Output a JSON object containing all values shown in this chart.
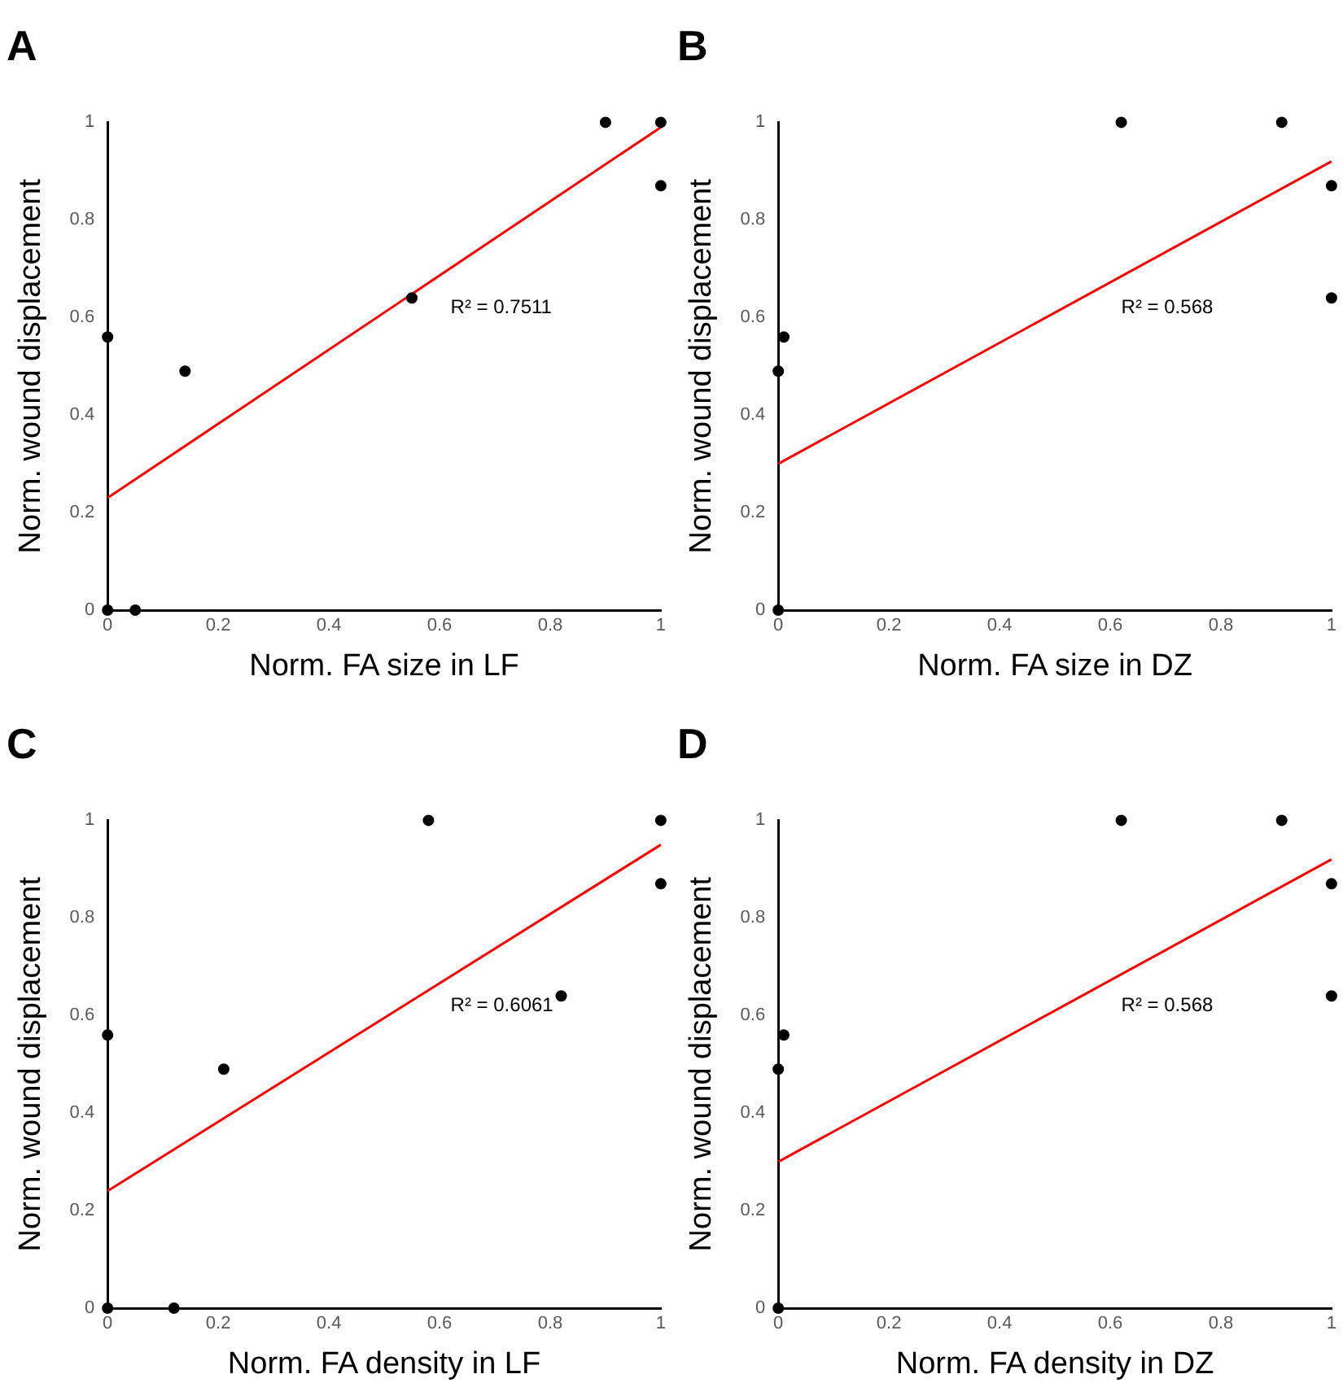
{
  "chart_data": [
    {
      "type": "scatter",
      "title": "A",
      "xlabel": "Norm. FA size in LF",
      "ylabel": "Norm. wound displacement",
      "xlim": [
        0,
        1
      ],
      "xticks": [
        0,
        0.2,
        0.4,
        0.6,
        0.8,
        1
      ],
      "ylim": [
        0,
        1
      ],
      "yticks": [
        0,
        0.2,
        0.4,
        0.6,
        0.8,
        1
      ],
      "grid": false,
      "legend": false,
      "annotations": [
        "R² = 0.7511"
      ],
      "series": [
        {
          "type": "scatter",
          "color": "#000000",
          "marker": "circle",
          "x": [
            0,
            0.05,
            0,
            0.14,
            0.55,
            0.9,
            1,
            1
          ],
          "values": [
            0,
            0,
            0.56,
            0.49,
            0.64,
            1,
            1,
            0.87
          ]
        },
        {
          "type": "line",
          "color": "#ff0000",
          "marker": "none",
          "line_style": "solid",
          "x": [
            0,
            1
          ],
          "values": [
            0.23,
            0.99
          ]
        }
      ]
    },
    {
      "type": "scatter",
      "title": "B",
      "xlabel": "Norm. FA size in DZ",
      "ylabel": "Norm. wound displacement",
      "xlim": [
        0,
        1
      ],
      "xticks": [
        0,
        0.2,
        0.4,
        0.6,
        0.8,
        1
      ],
      "ylim": [
        0,
        1
      ],
      "yticks": [
        0,
        0.2,
        0.4,
        0.6,
        0.8,
        1
      ],
      "grid": false,
      "legend": false,
      "annotations": [
        "R² = 0.568"
      ],
      "series": [
        {
          "type": "scatter",
          "color": "#000000",
          "marker": "circle",
          "x": [
            0,
            0.01,
            0,
            0.62,
            0.91,
            1,
            1
          ],
          "values": [
            0,
            0.56,
            0.49,
            1,
            1,
            0.87,
            0.64
          ]
        },
        {
          "type": "line",
          "color": "#ff0000",
          "marker": "none",
          "line_style": "solid",
          "x": [
            0,
            1
          ],
          "values": [
            0.3,
            0.92
          ]
        }
      ]
    },
    {
      "type": "scatter",
      "title": "C",
      "xlabel": "Norm. FA density in LF",
      "ylabel": "Norm. wound displacement",
      "xlim": [
        0,
        1
      ],
      "xticks": [
        0,
        0.2,
        0.4,
        0.6,
        0.8,
        1
      ],
      "ylim": [
        0,
        1
      ],
      "yticks": [
        0,
        0.2,
        0.4,
        0.6,
        0.8,
        1
      ],
      "grid": false,
      "legend": false,
      "annotations": [
        "R² = 0.6061"
      ],
      "series": [
        {
          "type": "scatter",
          "color": "#000000",
          "marker": "circle",
          "x": [
            0,
            0.12,
            0,
            0.21,
            0.58,
            0.82,
            1,
            1
          ],
          "values": [
            0,
            0,
            0.56,
            0.49,
            1,
            0.64,
            1,
            0.87
          ]
        },
        {
          "type": "line",
          "color": "#ff0000",
          "marker": "none",
          "line_style": "solid",
          "x": [
            0,
            1
          ],
          "values": [
            0.24,
            0.95
          ]
        }
      ]
    },
    {
      "type": "scatter",
      "title": "D",
      "xlabel": "Norm. FA density in DZ",
      "ylabel": "Norm. wound displacement",
      "xlim": [
        0,
        1
      ],
      "xticks": [
        0,
        0.2,
        0.4,
        0.6,
        0.8,
        1
      ],
      "ylim": [
        0,
        1
      ],
      "yticks": [
        0,
        0.2,
        0.4,
        0.6,
        0.8,
        1
      ],
      "grid": false,
      "legend": false,
      "annotations": [
        "R² = 0.568"
      ],
      "series": [
        {
          "type": "scatter",
          "color": "#000000",
          "marker": "circle",
          "x": [
            0,
            0.01,
            0,
            0.62,
            0.91,
            1,
            1
          ],
          "values": [
            0,
            0.56,
            0.49,
            1,
            1,
            0.87,
            0.64
          ]
        },
        {
          "type": "line",
          "color": "#ff0000",
          "marker": "none",
          "line_style": "solid",
          "x": [
            0,
            1
          ],
          "values": [
            0.3,
            0.92
          ]
        }
      ]
    }
  ]
}
